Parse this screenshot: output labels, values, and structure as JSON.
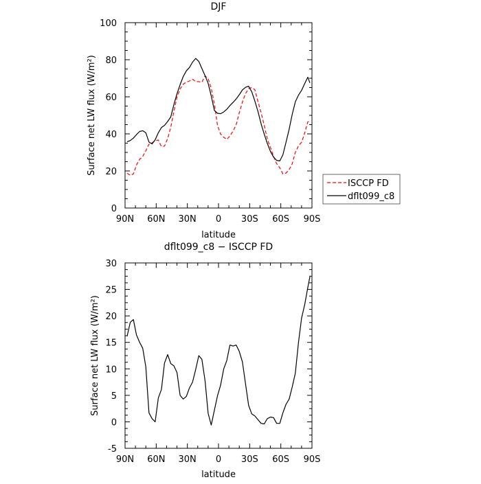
{
  "chart_data": [
    {
      "type": "line",
      "title": "DJF",
      "xlabel": "latitude",
      "ylabel": "Surface net LW flux (W/m²)",
      "xticks": [
        {
          "value": 90,
          "label": "90N"
        },
        {
          "value": 60,
          "label": "60N"
        },
        {
          "value": 30,
          "label": "30N"
        },
        {
          "value": 0,
          "label": "0"
        },
        {
          "value": -30,
          "label": "30S"
        },
        {
          "value": -60,
          "label": "60S"
        },
        {
          "value": -90,
          "label": "90S"
        }
      ],
      "xlim": [
        90,
        -90
      ],
      "ylim": [
        0,
        100
      ],
      "yticks": [
        0,
        20,
        40,
        60,
        80,
        100
      ],
      "legend": {
        "placement": "right"
      },
      "series": [
        {
          "name": "ISCCP FD",
          "color": "#ff0000",
          "dash": "dashed",
          "x": [
            88,
            85,
            82,
            79,
            76,
            73,
            70,
            67,
            64,
            61,
            58,
            55,
            52,
            49,
            46,
            43,
            40,
            37,
            34,
            31,
            28,
            25,
            22,
            19,
            16,
            13,
            10,
            7,
            4,
            1,
            -2,
            -5,
            -8,
            -11,
            -14,
            -17,
            -20,
            -23,
            -26,
            -29,
            -32,
            -35,
            -38,
            -41,
            -44,
            -47,
            -50,
            -53,
            -56,
            -59,
            -62,
            -65,
            -68,
            -71,
            -74,
            -77,
            -80,
            -83,
            -86,
            -88
          ],
          "y": [
            18.8,
            17.6,
            18.4,
            23.2,
            26.3,
            27.8,
            30.9,
            34.4,
            35.2,
            36.3,
            36.7,
            33.2,
            33.4,
            37.5,
            43.5,
            52,
            59.8,
            64.2,
            66.8,
            67.9,
            68.5,
            69.5,
            68.2,
            68.2,
            67.8,
            71.3,
            69.8,
            64.6,
            56.1,
            44.6,
            39.9,
            38.2,
            37,
            38.9,
            41.5,
            44.9,
            51.4,
            57.2,
            61.7,
            64.4,
            65,
            63.8,
            57.5,
            51.4,
            44.6,
            37.3,
            32.7,
            27.9,
            23.9,
            21.7,
            18.4,
            18.8,
            20.7,
            23.9,
            30,
            33.6,
            35.5,
            40.4,
            46.5,
            46.5
          ]
        },
        {
          "name": "dflt099_c8",
          "color": "#000000",
          "dash": "solid",
          "x": [
            88,
            85,
            82,
            79,
            76,
            73,
            70,
            67,
            64,
            61,
            58,
            55,
            52,
            49,
            46,
            43,
            40,
            37,
            34,
            31,
            28,
            25,
            22,
            19,
            16,
            13,
            10,
            7,
            4,
            1,
            -2,
            -5,
            -8,
            -11,
            -14,
            -17,
            -20,
            -23,
            -26,
            -29,
            -32,
            -35,
            -38,
            -41,
            -44,
            -47,
            -50,
            -53,
            -56,
            -59,
            -62,
            -65,
            -68,
            -71,
            -74,
            -77,
            -80,
            -83,
            -86,
            -88
          ],
          "y": [
            35.7,
            36.4,
            37.7,
            39.6,
            41.3,
            41.7,
            40.6,
            35.6,
            34.6,
            36.8,
            40.6,
            43.4,
            44.6,
            46.7,
            49.1,
            55.7,
            61.7,
            66.5,
            70.9,
            74,
            75.8,
            78.7,
            80.7,
            79.1,
            75.3,
            71.4,
            67.3,
            60.5,
            52.6,
            51.1,
            50.9,
            51.8,
            53.3,
            55.3,
            57,
            58.8,
            61.1,
            63.7,
            65.1,
            65.7,
            62.7,
            57.7,
            52.1,
            45.4,
            39.9,
            34.9,
            30.5,
            27.5,
            25.7,
            25.4,
            28.7,
            35.4,
            42.5,
            50.6,
            57.3,
            60.9,
            63.5,
            67.1,
            70.6,
            67.5
          ]
        }
      ]
    },
    {
      "type": "line",
      "title": "dflt099_c8 − ISCCP FD",
      "xlabel": "latitude",
      "ylabel": "Surface net LW flux (W/m²)",
      "xticks": [
        {
          "value": 90,
          "label": "90N"
        },
        {
          "value": 60,
          "label": "60N"
        },
        {
          "value": 30,
          "label": "30N"
        },
        {
          "value": 0,
          "label": "0"
        },
        {
          "value": -30,
          "label": "30S"
        },
        {
          "value": -60,
          "label": "60S"
        },
        {
          "value": -90,
          "label": "90S"
        }
      ],
      "xlim": [
        90,
        -90
      ],
      "ylim": [
        -5,
        30
      ],
      "yticks": [
        -5,
        0,
        5,
        10,
        15,
        20,
        25,
        30
      ],
      "series": [
        {
          "color": "#000000",
          "dash": "solid",
          "x": [
            88,
            85,
            82,
            79,
            76,
            73,
            70,
            67,
            64,
            61,
            58,
            55,
            52,
            49,
            46,
            43,
            40,
            37,
            34,
            31,
            28,
            25,
            22,
            19,
            16,
            13,
            10,
            7,
            4,
            1,
            -2,
            -5,
            -8,
            -11,
            -14,
            -17,
            -20,
            -23,
            -26,
            -29,
            -32,
            -35,
            -38,
            -41,
            -44,
            -47,
            -50,
            -53,
            -56,
            -59,
            -62,
            -65,
            -68,
            -71,
            -74,
            -77,
            -80,
            -83,
            -86,
            -88
          ],
          "y": [
            16.2,
            18.8,
            19.3,
            16.4,
            15,
            13.9,
            10.4,
            1.7,
            0.6,
            0,
            4.5,
            6.1,
            11.1,
            12.7,
            11,
            10.6,
            9.3,
            5,
            4.3,
            4.8,
            6.4,
            7.5,
            9.9,
            12.5,
            11.8,
            7.8,
            1.6,
            -0.6,
            2.2,
            4.9,
            6.9,
            10,
            11.6,
            14.5,
            14.3,
            14.5,
            13.3,
            11.3,
            7.2,
            3.1,
            1.5,
            1.1,
            0.4,
            -0.3,
            -0.4,
            0.6,
            0.9,
            0.8,
            -0.3,
            -0.3,
            1.7,
            3.3,
            4.3,
            6.6,
            9.2,
            15,
            19.6,
            22.1,
            25.4,
            27.4
          ]
        }
      ]
    }
  ]
}
